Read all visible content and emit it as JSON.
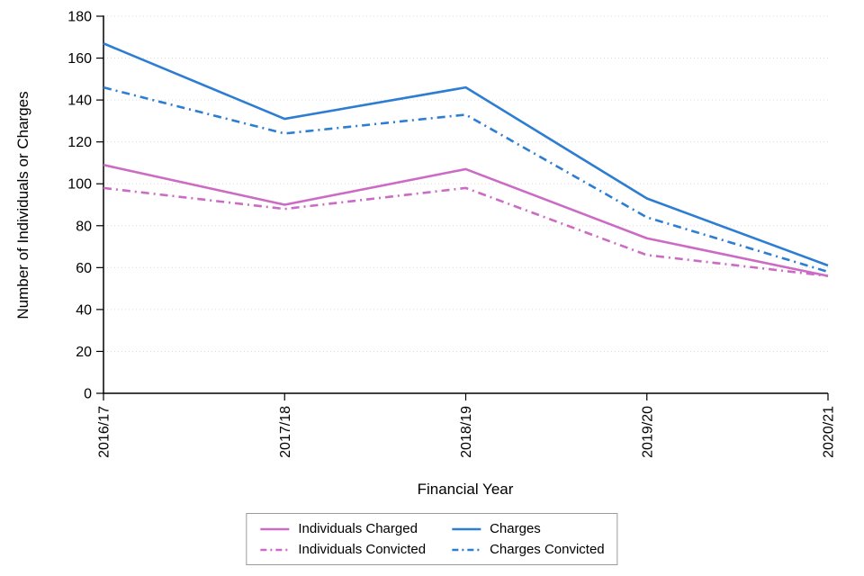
{
  "chart_data": {
    "type": "line",
    "title": "",
    "xlabel": "Financial Year",
    "ylabel": "Number of Individuals or Charges",
    "categories": [
      "2016/17",
      "2017/18",
      "2018/19",
      "2019/20",
      "2020/21"
    ],
    "ylim": [
      0,
      180
    ],
    "ytick_step": 20,
    "grid": "horizontal-dotted",
    "legend_position": "bottom-center",
    "colors": {
      "individuals": "#cc6bc4",
      "charges": "#2d7dd2"
    },
    "series": [
      {
        "name": "Individuals Charged",
        "color": "#cc6bc4",
        "style": "solid",
        "values": [
          109,
          90,
          107,
          74,
          56
        ]
      },
      {
        "name": "Individuals Convicted",
        "color": "#cc6bc4",
        "style": "dash-dot",
        "values": [
          98,
          88,
          98,
          66,
          56
        ]
      },
      {
        "name": "Charges",
        "color": "#2d7dd2",
        "style": "solid",
        "values": [
          167,
          131,
          146,
          93,
          61
        ]
      },
      {
        "name": "Charges Convicted",
        "color": "#2d7dd2",
        "style": "dash-dot",
        "values": [
          146,
          124,
          133,
          84,
          58
        ]
      }
    ]
  }
}
